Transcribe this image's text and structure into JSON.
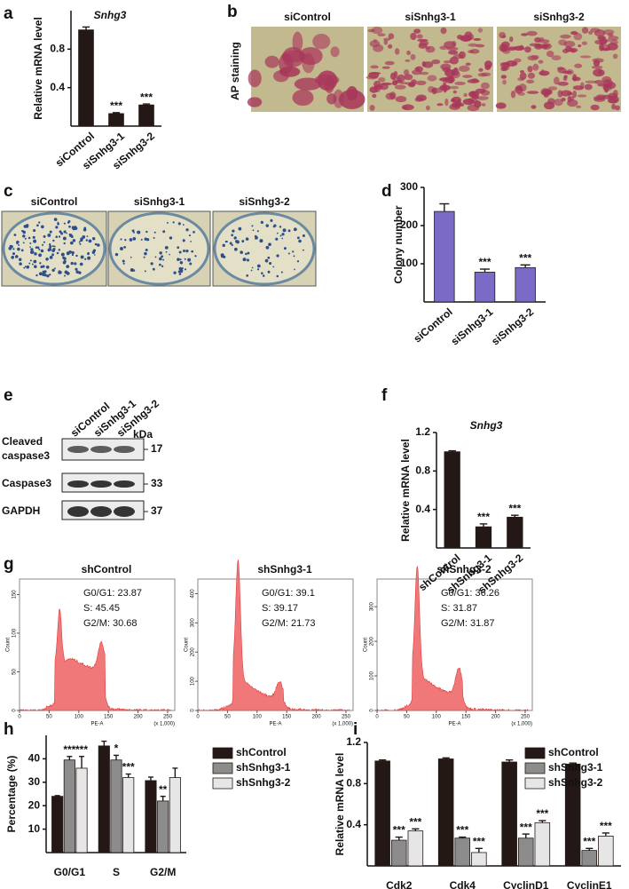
{
  "figure": {
    "panel_labels": [
      "a",
      "b",
      "c",
      "d",
      "e",
      "f",
      "g",
      "h",
      "i"
    ],
    "b": {
      "columns": [
        "siControl",
        "siSnhg3-1",
        "siSnhg3-2"
      ],
      "row_label": "AP staining"
    },
    "c": {
      "columns": [
        "siControl",
        "siSnhg3-1",
        "siSnhg3-2"
      ]
    },
    "e": {
      "lanes": [
        "siControl",
        "siSnhg3-1",
        "siSnhg3-2"
      ],
      "unit": "kDa",
      "rows": [
        {
          "label": [
            "Cleaved",
            "caspase3"
          ],
          "size": 17
        },
        {
          "label": [
            "Caspase3"
          ],
          "size": 33
        },
        {
          "label": [
            "GAPDH"
          ],
          "size": 37
        }
      ]
    },
    "g": {
      "x_label": "PE-A",
      "y_label": "Count",
      "x_unit": "(x 1,000)",
      "xlim": [
        0,
        262
      ],
      "xticks": [
        0,
        50,
        100,
        150,
        200,
        250
      ],
      "plots": [
        {
          "title": "shControl",
          "stats": [
            "G0/G1: 23.87",
            "S: 45.45",
            "G2/M: 30.68"
          ],
          "ylim": [
            0,
            170
          ],
          "yticks": [
            0,
            50,
            100,
            150
          ]
        },
        {
          "title": "shSnhg3-1",
          "stats": [
            "G0/G1: 39.1",
            "S: 39.17",
            "G2/M: 21.73"
          ],
          "ylim": [
            0,
            450
          ],
          "yticks": [
            0,
            100,
            200,
            300,
            400
          ]
        },
        {
          "title": "shSnhg3-2",
          "stats": [
            "G0/G1: 36.26",
            "S: 31.87",
            "G2/M: 31.87"
          ],
          "ylim": [
            0,
            380
          ],
          "yticks": [
            0,
            100,
            200,
            300
          ]
        }
      ]
    }
  },
  "chart_data": [
    {
      "type": "bar",
      "title": "Snhg3",
      "y_label": "Relative mRNA level",
      "categories": [
        "siControl",
        "siSnhg3-1",
        "siSnhg3-2"
      ],
      "values": [
        1.0,
        0.13,
        0.22
      ],
      "errors": [
        0.03,
        0.01,
        0.01
      ],
      "significance": [
        null,
        "***",
        "***"
      ],
      "color": "#231815",
      "ylim": [
        0,
        1.2
      ],
      "yticks": [
        0.4,
        0.8
      ]
    },
    {
      "type": "bar",
      "y_label": "Colony number",
      "categories": [
        "siControl",
        "siSnhg3-1",
        "siSnhg3-2"
      ],
      "values": [
        237,
        78,
        90
      ],
      "errors": [
        20,
        8,
        7
      ],
      "significance": [
        null,
        "***",
        "***"
      ],
      "color": "#7b6ac6",
      "ylim": [
        0,
        300
      ],
      "yticks": [
        100,
        200,
        300
      ]
    },
    {
      "type": "bar",
      "title": "Snhg3",
      "y_label": "Relative mRNA level",
      "categories": [
        "shControl",
        "shSnhg3-1",
        "shSnhg3-2"
      ],
      "values": [
        1.0,
        0.22,
        0.32
      ],
      "errors": [
        0.01,
        0.03,
        0.02
      ],
      "significance": [
        null,
        "***",
        "***"
      ],
      "color": "#231815",
      "ylim": [
        0,
        1.2
      ],
      "yticks": [
        0.4,
        0.8,
        1.2
      ]
    },
    {
      "type": "grouped_bar",
      "y_label": "Percentage (%)",
      "categories": [
        "G0/G1",
        "S",
        "G2/M"
      ],
      "series": [
        {
          "name": "shControl",
          "color": "#231815",
          "values": [
            24,
            45.5,
            30.7
          ],
          "errors": [
            0.3,
            2,
            1.5
          ]
        },
        {
          "name": "shSnhg3-1",
          "color": "#8c8c8c",
          "values": [
            39.5,
            39.5,
            22
          ],
          "errors": [
            1.5,
            2,
            2
          ],
          "significance": [
            "***",
            "*",
            "**"
          ]
        },
        {
          "name": "shSnhg3-2",
          "color": "#e6e6e6",
          "values": [
            36,
            32,
            32
          ],
          "errors": [
            5,
            1.5,
            4
          ],
          "significance": [
            "***",
            "***",
            null
          ]
        }
      ],
      "ylim": [
        0,
        50
      ],
      "yticks": [
        10,
        20,
        30,
        40
      ],
      "legend": "right"
    },
    {
      "type": "grouped_bar",
      "y_label": "Relative mRNA level",
      "categories": [
        "Cdk2",
        "Cdk4",
        "CyclinD1",
        "CyclinE1"
      ],
      "series": [
        {
          "name": "shControl",
          "color": "#231815",
          "values": [
            1.02,
            1.04,
            1.01,
            0.99
          ],
          "errors": [
            0.01,
            0.01,
            0.02,
            0.01
          ]
        },
        {
          "name": "shSnhg3-1",
          "color": "#8c8c8c",
          "values": [
            0.25,
            0.27,
            0.27,
            0.15
          ],
          "errors": [
            0.03,
            0.01,
            0.04,
            0.02
          ],
          "significance": [
            "***",
            "***",
            "***",
            "***"
          ]
        },
        {
          "name": "shSnhg3-2",
          "color": "#e6e6e6",
          "values": [
            0.34,
            0.13,
            0.42,
            0.29
          ],
          "errors": [
            0.02,
            0.04,
            0.02,
            0.03
          ],
          "significance": [
            "***",
            "***",
            "***",
            "***"
          ]
        }
      ],
      "ylim": [
        0,
        1.2
      ],
      "yticks": [
        0.4,
        0.8,
        1.2
      ],
      "legend": "top-right"
    }
  ]
}
